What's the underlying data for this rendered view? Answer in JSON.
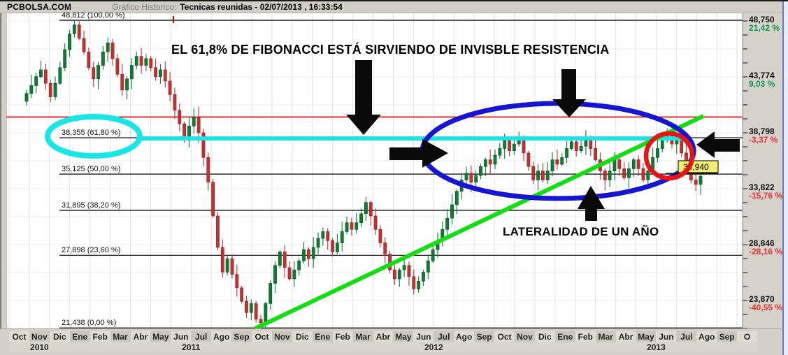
{
  "window": {
    "title_site": "PCBOLSA.COM",
    "title_prefix": "Gráfico Historico:",
    "title_main": "Tecnicas reunidas - 02/07/2013 , 16:33:54"
  },
  "annotations": {
    "fibonacci_note": "EL 61,8% DE FIBONACCI ESTÁ SIRVIENDO DE INVISBLE RESISTENCIA",
    "lateral_note": "LATERALIDAD DE UN AÑO",
    "price_tag": "34,940"
  },
  "fib_levels": [
    {
      "label": "48,812 (100,00 %)",
      "price": 48.812
    },
    {
      "label": "38,355 (61,80 %)",
      "price": 38.355
    },
    {
      "label": "35,125 (50,00 %)",
      "price": 35.125
    },
    {
      "label": "31,895 (38,20 %)",
      "price": 31.895
    },
    {
      "label": "27,898 (23,60 %)",
      "price": 27.898
    },
    {
      "label": "21,438 (0,00 %)",
      "price": 21.438
    }
  ],
  "y_axis": [
    {
      "value": "48,750",
      "pct": "21,42 %",
      "dir": "up"
    },
    {
      "value": "43,774",
      "pct": "9,03 %",
      "dir": "up"
    },
    {
      "value": "38,798",
      "pct": "-3,37 %",
      "dir": "down"
    },
    {
      "value": "33,822",
      "pct": "-15,76 %",
      "dir": "down"
    },
    {
      "value": "28,846",
      "pct": "-28,16 %",
      "dir": "down"
    },
    {
      "value": "23,870",
      "pct": "-40,55 %",
      "dir": "down"
    }
  ],
  "x_axis": {
    "months": [
      "Oct",
      "Nov",
      "Dic",
      "Ene",
      "Feb",
      "Mar",
      "Abr",
      "May",
      "Jun",
      "Jul",
      "Ago",
      "Sep",
      "Oct",
      "Nov",
      "Dic",
      "Ene",
      "Feb",
      "Mar",
      "Abr",
      "May",
      "Jun",
      "Jul",
      "Ago",
      "Sep",
      "Oct",
      "Nov",
      "Dic",
      "Ene",
      "Feb",
      "Mar",
      "Abr",
      "May",
      "Jun",
      "Jul",
      "Ago",
      "Sep",
      "O"
    ],
    "years": [
      {
        "label": "2010",
        "from": 0,
        "to": 2
      },
      {
        "label": "2011",
        "from": 3,
        "to": 14
      },
      {
        "label": "2012",
        "from": 15,
        "to": 26
      },
      {
        "label": "2013",
        "from": 27,
        "to": 36
      }
    ]
  },
  "chart_data": {
    "type": "candlestick",
    "interval": "weekly",
    "title": "Gráfico Historico: Tecnicas reunidas - 02/07/2013 , 16:33:54",
    "x_range": [
      "Oct 2010",
      "Jul 2013"
    ],
    "ylim": [
      21.0,
      49.4
    ],
    "y_tick_values": [
      48.75,
      43.774,
      38.798,
      33.822,
      28.846,
      23.87
    ],
    "fibonacci_levels": [
      48.812,
      38.355,
      35.125,
      31.895,
      27.898,
      21.438
    ],
    "resistance_line_price": 40.2,
    "last_price": 34.94,
    "high_all_time": 48.812,
    "low_all_time": 21.438,
    "trend_line": {
      "from_price": 21.4,
      "from_x": "Oct 2011",
      "to_price": 40.2,
      "to_x": "Jul 2013"
    },
    "closes": [
      42.3,
      43.0,
      43.8,
      44.4,
      43.2,
      42.0,
      43.2,
      44.6,
      46.2,
      47.6,
      48.4,
      47.2,
      46.0,
      44.6,
      43.6,
      44.8,
      46.0,
      46.8,
      45.4,
      44.0,
      42.6,
      43.6,
      44.8,
      45.6,
      44.8,
      45.4,
      44.6,
      43.8,
      44.4,
      43.4,
      42.2,
      40.8,
      39.6,
      38.4,
      39.4,
      40.2,
      38.8,
      36.6,
      34.4,
      31.4,
      28.6,
      26.4,
      27.6,
      26.2,
      25.0,
      23.8,
      22.8,
      23.6,
      22.2,
      21.9,
      23.6,
      25.4,
      27.0,
      28.2,
      26.8,
      25.8,
      26.6,
      27.4,
      28.4,
      27.6,
      28.6,
      29.4,
      30.0,
      29.2,
      28.2,
      29.0,
      30.0,
      30.8,
      30.2,
      30.8,
      31.6,
      32.6,
      31.4,
      30.2,
      29.0,
      28.0,
      26.6,
      25.8,
      26.6,
      27.0,
      26.0,
      24.9,
      25.6,
      26.4,
      27.4,
      28.4,
      29.2,
      30.2,
      31.2,
      32.4,
      33.6,
      34.6,
      35.2,
      34.4,
      35.0,
      35.8,
      36.4,
      36.0,
      36.8,
      37.4,
      38.1,
      37.2,
      37.8,
      38.2,
      37.0,
      35.8,
      34.6,
      35.4,
      34.6,
      35.4,
      36.4,
      36.0,
      36.6,
      37.4,
      38.0,
      37.2,
      37.6,
      38.2,
      37.4,
      36.4,
      35.4,
      34.6,
      35.4,
      36.4,
      35.6,
      34.8,
      35.6,
      36.4,
      35.6,
      34.6,
      35.4,
      36.6,
      37.4,
      38.2,
      38.5,
      37.8,
      38.2,
      37.0,
      35.8,
      34.6,
      34.2,
      34.94
    ]
  },
  "colors": {
    "candle_up": "#0d7d35",
    "candle_up_stroke": "#06511f",
    "candle_down": "#c13231",
    "candle_down_stroke": "#8d1f1f",
    "fib_line": "#000000",
    "resistance_line": "#dd0000",
    "cyan_accent": "#18e6e6",
    "blue_ellipse": "#1515d2",
    "red_circle": "#e61414",
    "green_trend": "#12de12",
    "tag_bg": "#f0ee6e",
    "pct_up": "#0a9a4a",
    "pct_down": "#e23333"
  }
}
